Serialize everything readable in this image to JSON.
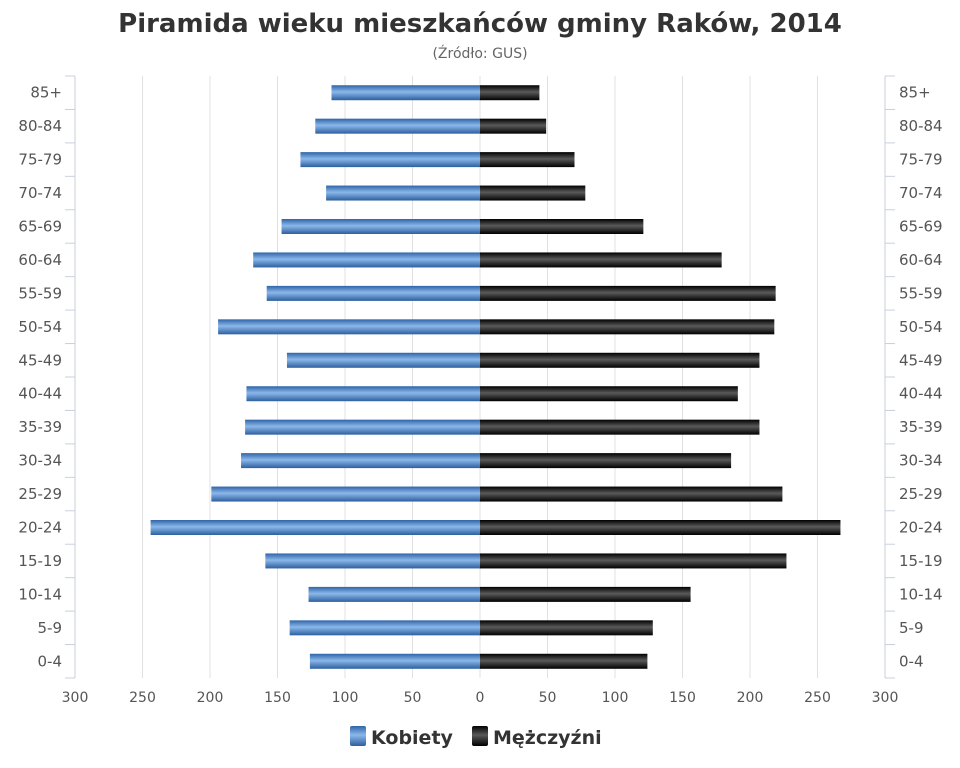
{
  "chart_data": {
    "type": "bar",
    "orientation": "horizontal-population-pyramid",
    "title": "Piramida wieku mieszkańców gminy Raków, 2014",
    "subtitle": "(Źródło: GUS)",
    "categories": [
      "85+",
      "80-84",
      "75-79",
      "70-74",
      "65-69",
      "60-64",
      "55-59",
      "50-54",
      "45-49",
      "40-44",
      "35-39",
      "30-34",
      "25-29",
      "20-24",
      "15-19",
      "10-14",
      "5-9",
      "0-4"
    ],
    "series": [
      {
        "name": "Kobiety",
        "side": "left",
        "color": "#4a86c8",
        "values": [
          110,
          122,
          133,
          114,
          147,
          168,
          158,
          194,
          143,
          173,
          174,
          177,
          199,
          244,
          159,
          127,
          141,
          126
        ]
      },
      {
        "name": "Mężczyźni",
        "side": "right",
        "color": "#1a1a1a",
        "values": [
          44,
          49,
          70,
          78,
          121,
          179,
          219,
          218,
          207,
          191,
          207,
          186,
          224,
          267,
          227,
          156,
          128,
          124
        ]
      }
    ],
    "xlim": [
      -300,
      300
    ],
    "x_ticks": [
      "300",
      "250",
      "200",
      "150",
      "100",
      "50",
      "0",
      "50",
      "100",
      "150",
      "200",
      "250",
      "300"
    ],
    "grid": true,
    "legend_position": "bottom-center"
  }
}
